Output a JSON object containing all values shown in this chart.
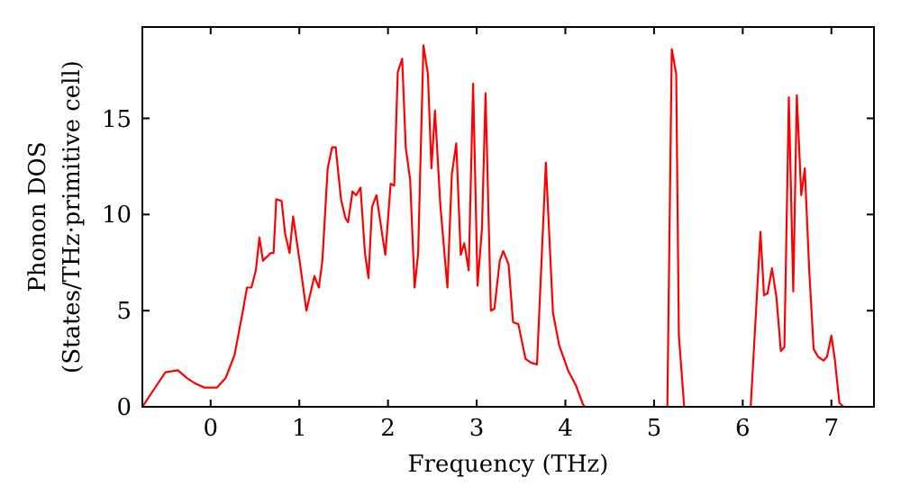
{
  "chart_data": {
    "type": "line",
    "xlabel": "Frequency (THz)",
    "ylabel": "Phonon DOS\n(States/THz·primitive cell)",
    "xlim": [
      -0.77,
      7.48
    ],
    "ylim": [
      0,
      19.75
    ],
    "xticks": [
      0,
      1,
      2,
      3,
      4,
      5,
      6,
      7
    ],
    "yticks": [
      0,
      5,
      10,
      15
    ],
    "grid": false,
    "marker": "none",
    "line_style": "solid",
    "series": [
      {
        "color": "#ff0000",
        "x": [
          -0.77,
          -0.74,
          -0.64,
          -0.51,
          -0.37,
          -0.27,
          -0.17,
          -0.07,
          0.07,
          0.17,
          0.27,
          0.36,
          0.41,
          0.46,
          0.51,
          0.55,
          0.59,
          0.68,
          0.71,
          0.74,
          0.8,
          0.84,
          0.89,
          0.93,
          1.0,
          1.08,
          1.17,
          1.22,
          1.26,
          1.32,
          1.37,
          1.41,
          1.47,
          1.52,
          1.55,
          1.6,
          1.64,
          1.69,
          1.74,
          1.78,
          1.82,
          1.87,
          1.93,
          1.97,
          2.03,
          2.07,
          2.11,
          2.16,
          2.2,
          2.25,
          2.3,
          2.34,
          2.4,
          2.45,
          2.49,
          2.53,
          2.59,
          2.67,
          2.72,
          2.77,
          2.82,
          2.86,
          2.91,
          2.96,
          3.01,
          3.06,
          3.1,
          3.16,
          3.2,
          3.26,
          3.3,
          3.36,
          3.41,
          3.47,
          3.55,
          3.61,
          3.68,
          3.78,
          3.86,
          3.93,
          4.03,
          4.12,
          4.2,
          4.22,
          5.15,
          5.2,
          5.25,
          5.28,
          5.34,
          6.09,
          6.2,
          6.24,
          6.28,
          6.33,
          6.38,
          6.43,
          6.47,
          6.52,
          6.57,
          6.61,
          6.66,
          6.7,
          6.75,
          6.8,
          6.85,
          6.91,
          6.95,
          7.0,
          7.04,
          7.09,
          7.14
        ],
        "values": [
          0,
          0.2,
          0.9,
          1.8,
          1.9,
          1.5,
          1.2,
          1.0,
          1.0,
          1.5,
          2.7,
          4.9,
          6.2,
          6.2,
          7.1,
          8.8,
          7.6,
          8.0,
          8.0,
          10.8,
          10.7,
          9.0,
          8.0,
          9.9,
          7.7,
          5.0,
          6.8,
          6.2,
          7.6,
          12.4,
          13.5,
          13.5,
          10.8,
          9.8,
          9.6,
          11.2,
          11.0,
          11.4,
          8.0,
          6.7,
          10.4,
          11.0,
          9.1,
          7.9,
          11.6,
          11.5,
          17.4,
          18.1,
          13.5,
          11.8,
          6.2,
          8.0,
          18.8,
          17.3,
          12.4,
          15.4,
          10.5,
          6.2,
          12.1,
          13.7,
          7.9,
          8.5,
          7.1,
          16.8,
          6.3,
          9.3,
          16.3,
          5.0,
          5.1,
          7.6,
          8.1,
          7.4,
          4.4,
          4.3,
          2.5,
          2.3,
          2.2,
          12.7,
          4.9,
          3.2,
          1.9,
          1.1,
          0.1,
          0,
          0,
          18.6,
          17.3,
          3.7,
          0,
          0,
          9.1,
          5.8,
          5.9,
          7.2,
          5.7,
          2.9,
          3.1,
          16.1,
          6.0,
          16.2,
          11.0,
          12.4,
          7.1,
          3.0,
          2.6,
          2.4,
          2.6,
          3.7,
          2.4,
          0.2,
          0
        ]
      }
    ]
  }
}
